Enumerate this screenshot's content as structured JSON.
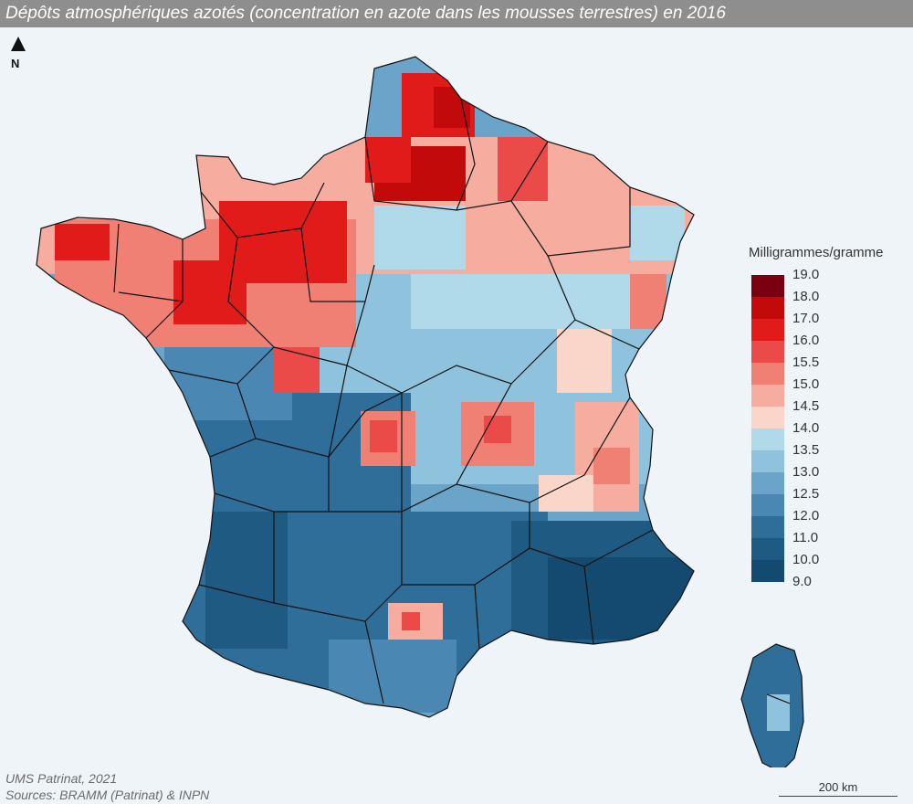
{
  "title": "Dépôts atmosphériques azotés (concentration en azote dans les mousses terrestres) en 2016",
  "north_label": "N",
  "legend": {
    "title": "Milligrammes/gramme",
    "breaks": [
      "19.0",
      "18.0",
      "17.0",
      "16.0",
      "15.5",
      "15.0",
      "14.5",
      "14.0",
      "13.5",
      "13.0",
      "12.5",
      "12.0",
      "11.0",
      "10.0",
      "9.0"
    ],
    "colors": [
      "#7a0011",
      "#c20a0a",
      "#e11a1a",
      "#ea4b48",
      "#f08074",
      "#f6ada0",
      "#fad6ca",
      "#b0d9ea",
      "#8fc2dd",
      "#6aa5c9",
      "#4a87b2",
      "#2e6e99",
      "#1f5a82",
      "#154a70"
    ]
  },
  "credits": {
    "line1": "UMS Patrinat, 2021",
    "line2": "Sources: BRAMM (Patrinat) & INPN"
  },
  "scale_label": "200 km",
  "map": {
    "background": "#eef4f7",
    "outline_color": "#111111"
  }
}
